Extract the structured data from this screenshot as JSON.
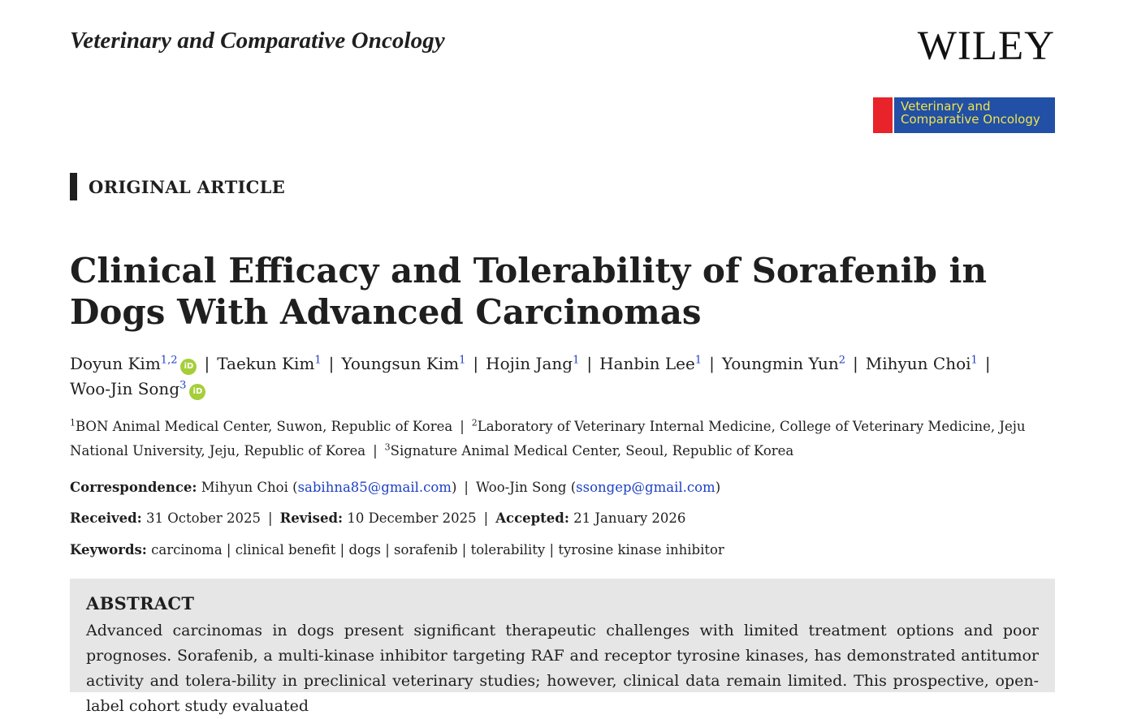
{
  "header": {
    "journal_name": "Veterinary and Comparative Oncology",
    "publisher_logo": "WILEY",
    "badge_line1": "Veterinary and",
    "badge_line2": "Comparative Oncology",
    "badge_colors": {
      "red": "#e8232a",
      "blue": "#2150a6",
      "text": "#f2e34a"
    }
  },
  "article_type": "ORIGINAL ARTICLE",
  "title": "Clinical Efficacy and Tolerability of Sorafenib in Dogs With Advanced Carcinomas",
  "authors": [
    {
      "name": "Doyun Kim",
      "sup": "1,2",
      "orcid": true
    },
    {
      "name": "Taekun Kim",
      "sup": "1",
      "orcid": false
    },
    {
      "name": "Youngsun Kim",
      "sup": "1",
      "orcid": false
    },
    {
      "name": "Hojin Jang",
      "sup": "1",
      "orcid": false
    },
    {
      "name": "Hanbin Lee",
      "sup": "1",
      "orcid": false
    },
    {
      "name": "Youngmin Yun",
      "sup": "2",
      "orcid": false
    },
    {
      "name": "Mihyun Choi",
      "sup": "1",
      "orcid": false
    },
    {
      "name": "Woo-Jin Song",
      "sup": "3",
      "orcid": true
    }
  ],
  "orcid_icon_text": "iD",
  "separator": "|",
  "affiliations": [
    {
      "sup": "1",
      "text": "BON Animal Medical Center, Suwon, Republic of Korea"
    },
    {
      "sup": "2",
      "text": "Laboratory of Veterinary Internal Medicine, College of Veterinary Medicine, Jeju National University, Jeju, Republic of Korea"
    },
    {
      "sup": "3",
      "text": "Signature Animal Medical Center, Seoul, Republic of Korea"
    }
  ],
  "correspondence": {
    "label": "Correspondence:",
    "person1": "Mihyun Choi",
    "email1": "sabihna85@gmail.com",
    "person2": "Woo-Jin Song",
    "email2": "ssongep@gmail.com"
  },
  "dates": {
    "received_label": "Received:",
    "received": "31 October 2025",
    "revised_label": "Revised:",
    "revised": "10 December 2025",
    "accepted_label": "Accepted:",
    "accepted": "21 January 2026"
  },
  "keywords": {
    "label": "Keywords:",
    "items": [
      "carcinoma",
      "clinical benefit",
      "dogs",
      "sorafenib",
      "tolerability",
      "tyrosine kinase inhibitor"
    ]
  },
  "abstract": {
    "heading": "ABSTRACT",
    "text": "Advanced carcinomas in dogs present significant therapeutic challenges with limited treatment options and poor prognoses. Sorafenib, a multi-kinase inhibitor targeting RAF and receptor tyrosine kinases, has demonstrated antitumor activity and tolera-bility in preclinical veterinary studies; however, clinical data remain limited. This prospective, open-label cohort study evaluated"
  }
}
